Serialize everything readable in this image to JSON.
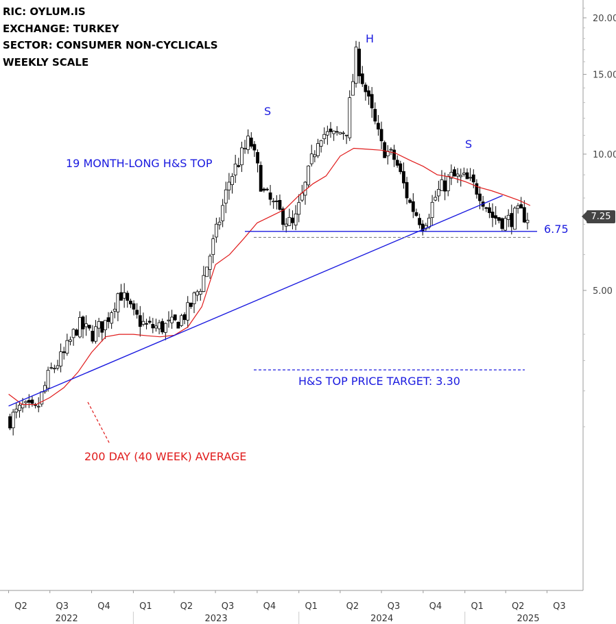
{
  "info": {
    "ric": "RIC:  OYLUM.IS",
    "exchange": "EXCHANGE:  TURKEY",
    "sector": "SECTOR:  CONSUMER NON-CYCLICALS",
    "scale": "WEEKLY SCALE"
  },
  "annotations": {
    "pattern": "19 MONTH-LONG H&S TOP",
    "left_shoulder": "S",
    "head": "H",
    "right_shoulder": "S",
    "neckline_level": "6.75",
    "target": "H&S TOP PRICE TARGET: 3.30",
    "moving_average": "200 DAY (40 WEEK) AVERAGE"
  },
  "last_price_label": "7.25",
  "colors": {
    "annotation_blue": "#1a1adf",
    "moving_average_red": "#e01b1b",
    "candle": "#000000",
    "badge": "#444444"
  },
  "chart_data": {
    "type": "candlestick",
    "scale": "log",
    "title": "",
    "ylim": [
      2.0,
      22.0
    ],
    "y_ticks": [
      "20.00",
      "15.00",
      "10.00",
      "5.00"
    ],
    "y_tick_values": [
      20,
      15,
      10,
      5
    ],
    "x_quarters": [
      "Q2",
      "Q3",
      "Q4",
      "Q1",
      "Q2",
      "Q3",
      "Q4",
      "Q1",
      "Q2",
      "Q3",
      "Q4",
      "Q1",
      "Q2",
      "Q3"
    ],
    "x_years": [
      "2022",
      "2023",
      "2024",
      "2025"
    ],
    "range_start": "2022-04-01",
    "range_end": "2025-07-15",
    "weekly_close_path": [
      [
        "2022-04-04",
        2.6
      ],
      [
        "2022-05-02",
        2.75
      ],
      [
        "2022-06-01",
        2.7
      ],
      [
        "2022-07-01",
        3.3
      ],
      [
        "2022-08-01",
        3.6
      ],
      [
        "2022-09-01",
        4.2
      ],
      [
        "2022-10-01",
        4.0
      ],
      [
        "2022-11-01",
        4.25
      ],
      [
        "2022-12-01",
        5.0
      ],
      [
        "2023-01-01",
        4.4
      ],
      [
        "2023-02-01",
        4.15
      ],
      [
        "2023-03-01",
        4.15
      ],
      [
        "2023-04-01",
        4.2
      ],
      [
        "2023-05-01",
        4.5
      ],
      [
        "2023-06-01",
        5.2
      ],
      [
        "2023-07-01",
        6.6
      ],
      [
        "2023-08-01",
        8.8
      ],
      [
        "2023-09-15",
        10.8
      ],
      [
        "2023-10-15",
        8.2
      ],
      [
        "2023-11-15",
        7.5
      ],
      [
        "2023-12-20",
        6.9
      ],
      [
        "2024-01-15",
        8.5
      ],
      [
        "2024-02-15",
        11.2
      ],
      [
        "2024-03-15",
        10.9
      ],
      [
        "2024-04-15",
        11.4
      ],
      [
        "2024-05-06",
        16.5
      ],
      [
        "2024-06-01",
        13.2
      ],
      [
        "2024-07-01",
        10.4
      ],
      [
        "2024-08-01",
        9.7
      ],
      [
        "2024-09-01",
        7.8
      ],
      [
        "2024-10-01",
        7.0
      ],
      [
        "2024-11-01",
        8.2
      ],
      [
        "2024-12-01",
        8.9
      ],
      [
        "2025-01-01",
        8.8
      ],
      [
        "2025-02-01",
        8.3
      ],
      [
        "2025-03-01",
        7.3
      ],
      [
        "2025-04-01",
        7.1
      ],
      [
        "2025-05-01",
        7.4
      ],
      [
        "2025-05-25",
        7.25
      ]
    ],
    "ma_200day": [
      [
        "2022-04-01",
        2.95
      ],
      [
        "2022-05-01",
        2.8
      ],
      [
        "2022-06-01",
        2.8
      ],
      [
        "2022-07-01",
        2.9
      ],
      [
        "2022-08-01",
        3.05
      ],
      [
        "2022-09-01",
        3.3
      ],
      [
        "2022-10-01",
        3.65
      ],
      [
        "2022-11-01",
        3.95
      ],
      [
        "2022-12-01",
        4.0
      ],
      [
        "2023-01-01",
        4.0
      ],
      [
        "2023-02-01",
        3.97
      ],
      [
        "2023-03-01",
        3.95
      ],
      [
        "2023-04-01",
        3.98
      ],
      [
        "2023-05-01",
        4.15
      ],
      [
        "2023-06-01",
        4.6
      ],
      [
        "2023-07-01",
        5.7
      ],
      [
        "2023-08-01",
        6.0
      ],
      [
        "2023-09-01",
        6.5
      ],
      [
        "2023-10-01",
        7.05
      ],
      [
        "2023-11-01",
        7.3
      ],
      [
        "2023-12-01",
        7.55
      ],
      [
        "2024-01-01",
        8.1
      ],
      [
        "2024-02-01",
        8.6
      ],
      [
        "2024-03-01",
        8.95
      ],
      [
        "2024-04-01",
        9.9
      ],
      [
        "2024-05-01",
        10.3
      ],
      [
        "2024-06-01",
        10.25
      ],
      [
        "2024-07-01",
        10.2
      ],
      [
        "2024-08-01",
        10.05
      ],
      [
        "2024-09-01",
        9.7
      ],
      [
        "2024-10-01",
        9.4
      ],
      [
        "2024-11-01",
        9.0
      ],
      [
        "2024-12-01",
        8.9
      ],
      [
        "2025-01-01",
        8.7
      ],
      [
        "2025-02-01",
        8.45
      ],
      [
        "2025-03-01",
        8.3
      ],
      [
        "2025-04-01",
        8.1
      ],
      [
        "2025-05-01",
        7.9
      ],
      [
        "2025-05-25",
        7.7
      ]
    ],
    "neckline": 6.75,
    "support_dashed": 6.55,
    "price_target": 3.3,
    "trendline": [
      [
        "2022-04-01",
        2.35
      ],
      [
        "2025-03-25",
        8.1
      ]
    ],
    "last_price": 7.25
  }
}
